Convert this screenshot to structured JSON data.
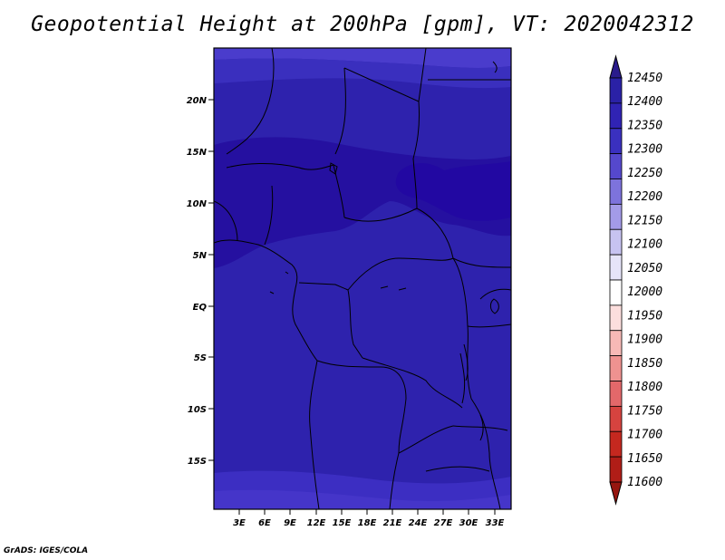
{
  "title": "Geopotential Height at 200hPa [gpm], VT: 2020042312",
  "credit": "GrADS: IGES/COLA",
  "map": {
    "lat_ticks": [
      "20N",
      "15N",
      "10N",
      "5N",
      "EQ",
      "5S",
      "10S",
      "15S"
    ],
    "lon_ticks": [
      "3E",
      "6E",
      "9E",
      "12E",
      "15E",
      "18E",
      "21E",
      "24E",
      "27E",
      "30E",
      "33E"
    ]
  },
  "colorbar": {
    "levels": [
      "12450",
      "12400",
      "12350",
      "12300",
      "12250",
      "12200",
      "12150",
      "12100",
      "12050",
      "12000",
      "11950",
      "11900",
      "11850",
      "11800",
      "11750",
      "11700",
      "11650",
      "11600"
    ],
    "colors": [
      "#2a1b8c",
      "#2a21a6",
      "#3023b4",
      "#3a30bf",
      "#5548cd",
      "#7d73dc",
      "#a39be8",
      "#c7c3f1",
      "#e6e4f9",
      "#ffffff",
      "#fcdedd",
      "#f7b9b6",
      "#ef9290",
      "#e3686a",
      "#d6433f",
      "#c5281f",
      "#b01d17",
      "#96160f"
    ]
  }
}
